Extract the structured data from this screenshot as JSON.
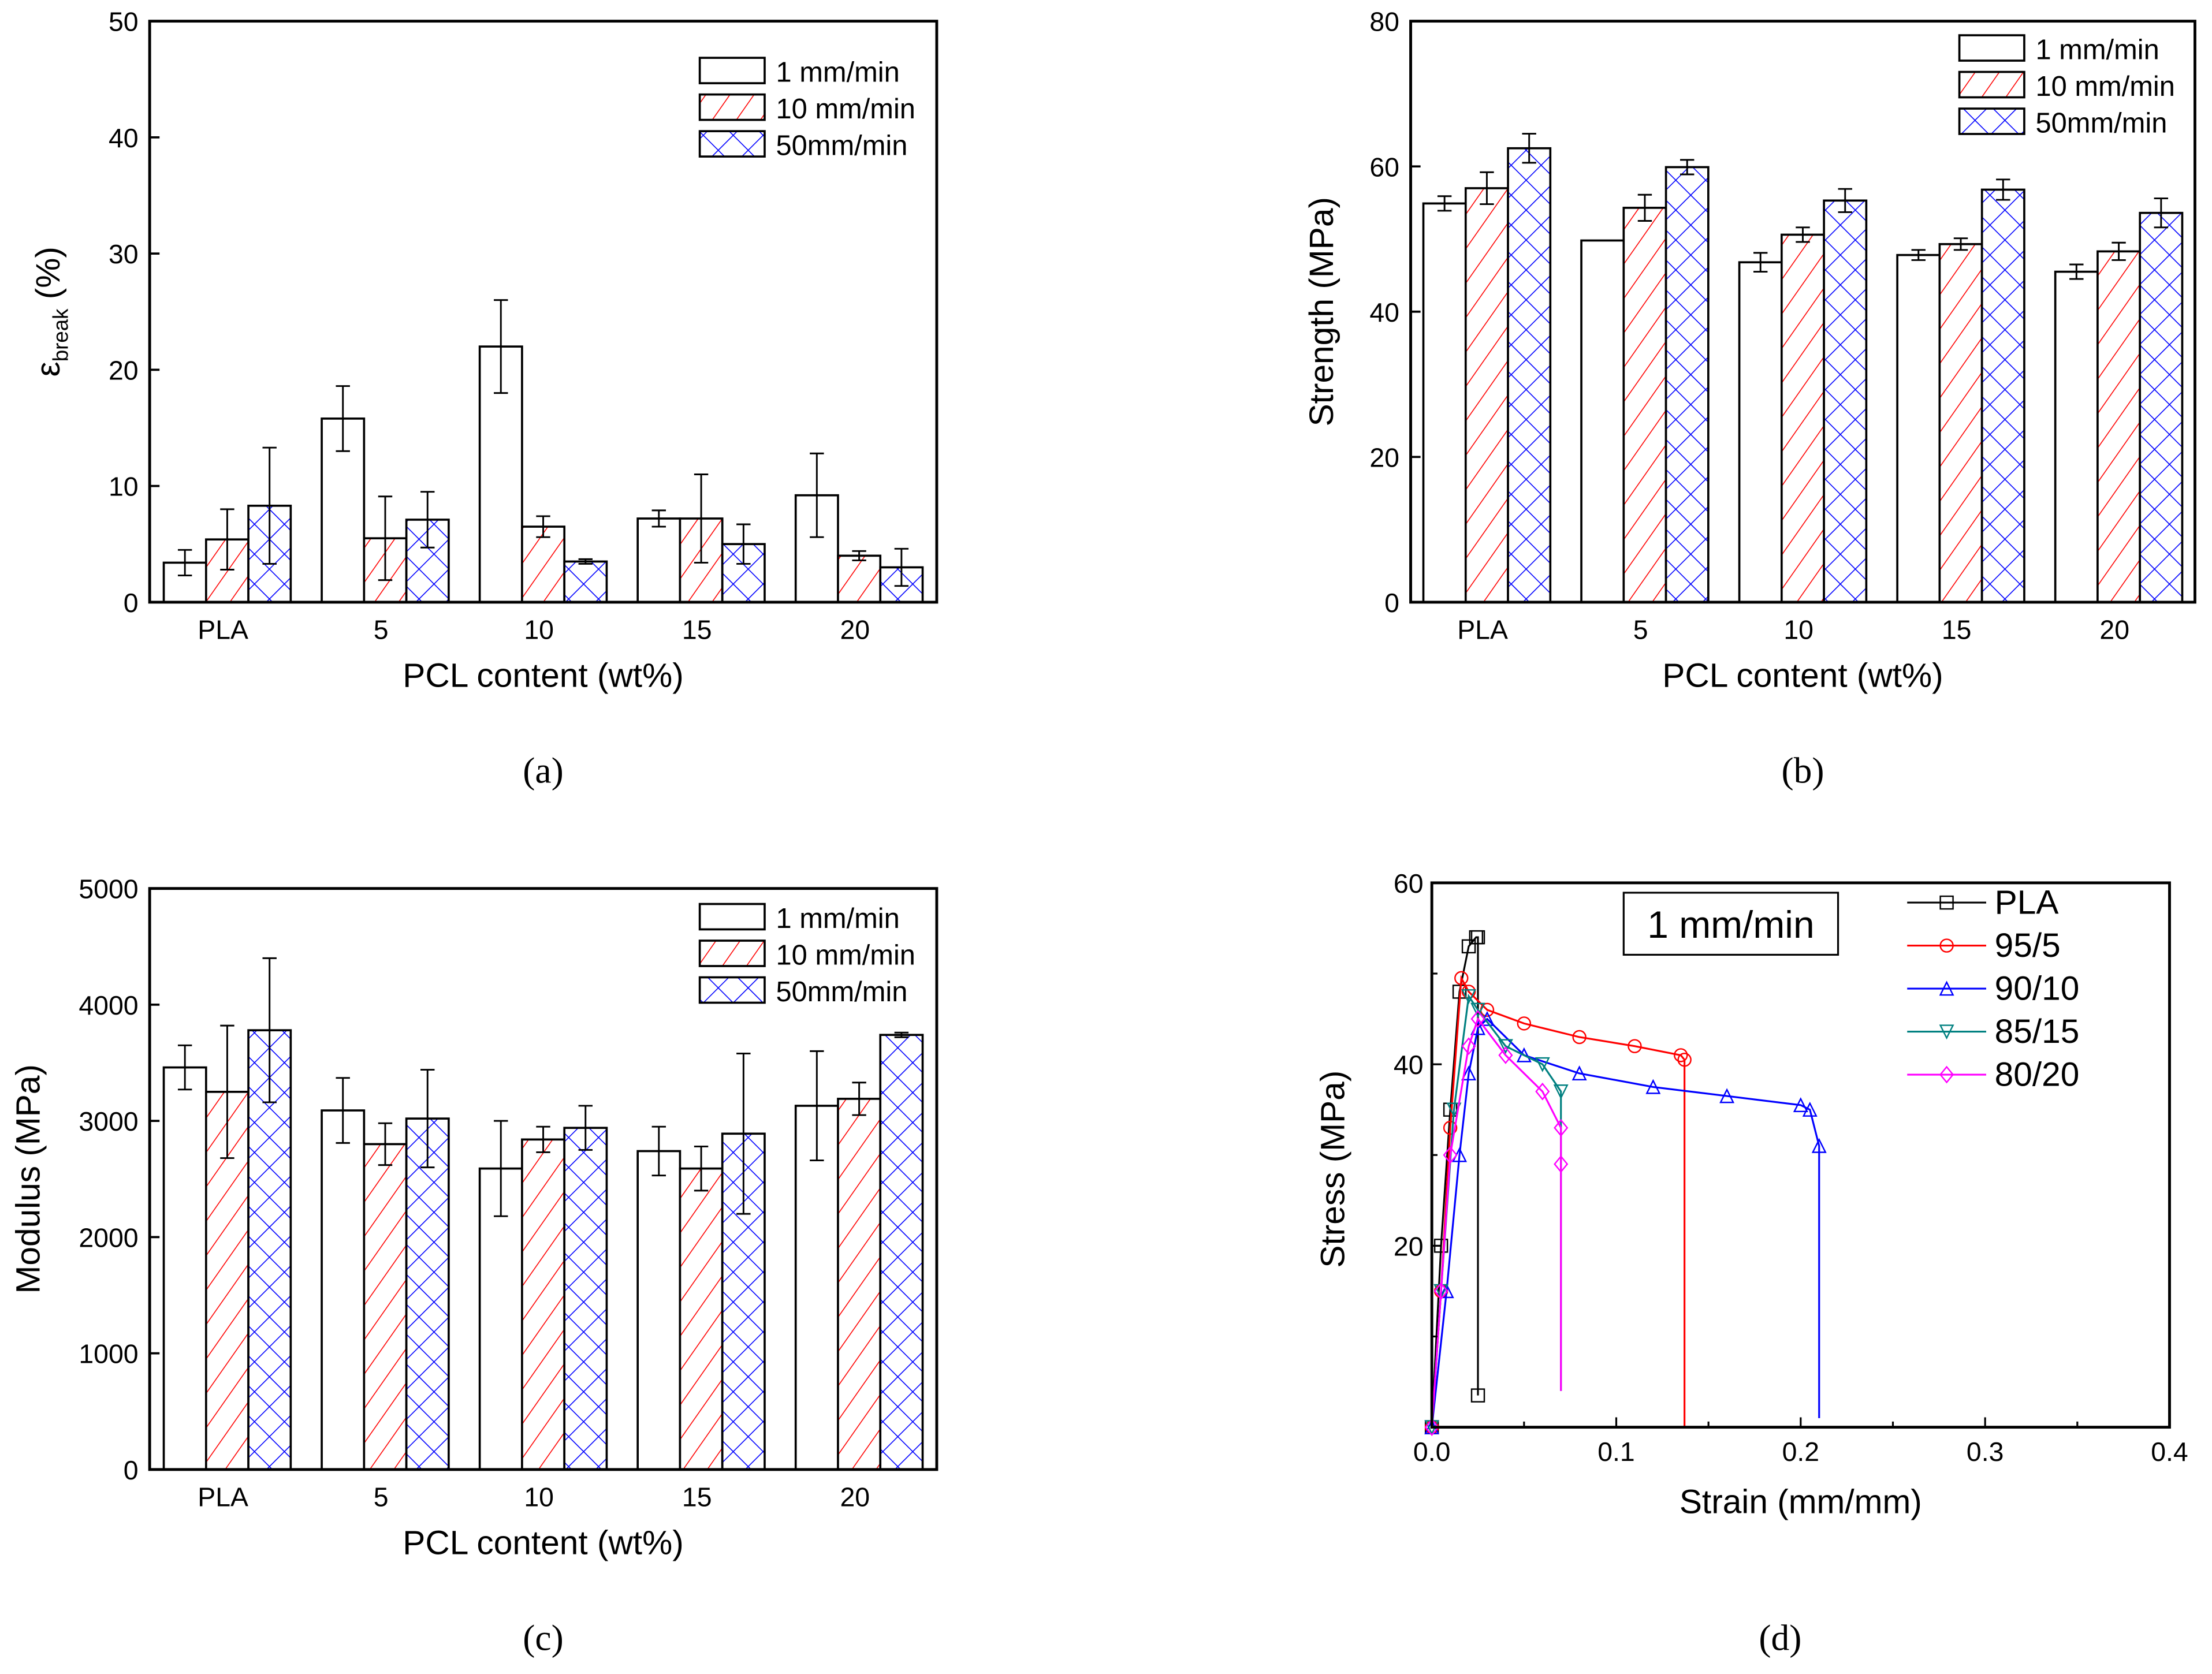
{
  "chart_data": [
    {
      "id": "a",
      "type": "bar",
      "caption": "(a)",
      "categories": [
        "PLA",
        "5",
        "10",
        "15",
        "20"
      ],
      "xlabel": "PCL content (wt%)",
      "ylabel_main": "ε",
      "ylabel_sub": "break",
      "ylabel_unit": " (%)",
      "ylim": [
        0,
        50
      ],
      "yticks": [
        0,
        10,
        20,
        30,
        40,
        50
      ],
      "legend_position": "top-right",
      "series": [
        {
          "name": "1 mm/min",
          "fill": "plain",
          "values": [
            3.4,
            15.8,
            22.0,
            7.2,
            9.2
          ],
          "errors": [
            1.1,
            2.8,
            4.0,
            0.7,
            3.6
          ]
        },
        {
          "name": "10 mm/min",
          "fill": "red-hatch",
          "values": [
            5.4,
            5.5,
            6.5,
            7.2,
            4.0
          ],
          "errors": [
            2.6,
            3.6,
            0.9,
            3.8,
            0.4
          ]
        },
        {
          "name": "50mm/min",
          "fill": "blue-crosshatch",
          "values": [
            8.3,
            7.1,
            3.5,
            5.0,
            3.0
          ],
          "errors": [
            5.0,
            2.4,
            0.2,
            1.7,
            1.6
          ]
        }
      ]
    },
    {
      "id": "b",
      "type": "bar",
      "caption": "(b)",
      "categories": [
        "PLA",
        "5",
        "10",
        "15",
        "20"
      ],
      "xlabel": "PCL content (wt%)",
      "ylabel": "Strength (MPa)",
      "ylim": [
        0,
        80
      ],
      "yticks": [
        0,
        20,
        40,
        60,
        80
      ],
      "legend_position": "top-right",
      "series": [
        {
          "name": "1 mm/min",
          "fill": "plain",
          "values": [
            54.9,
            49.8,
            46.8,
            47.8,
            45.5
          ],
          "errors": [
            1.0,
            0.0,
            1.3,
            0.7,
            1.0
          ]
        },
        {
          "name": "10 mm/min",
          "fill": "red-hatch",
          "values": [
            57.0,
            54.3,
            50.6,
            49.3,
            48.3
          ],
          "errors": [
            2.2,
            1.8,
            1.0,
            0.8,
            1.2
          ]
        },
        {
          "name": "50mm/min",
          "fill": "blue-crosshatch",
          "values": [
            62.5,
            59.9,
            55.3,
            56.8,
            53.6
          ],
          "errors": [
            2.0,
            1.0,
            1.6,
            1.4,
            2.0
          ]
        }
      ]
    },
    {
      "id": "c",
      "type": "bar",
      "caption": "(c)",
      "categories": [
        "PLA",
        "5",
        "10",
        "15",
        "20"
      ],
      "xlabel": "PCL content (wt%)",
      "ylabel": "Modulus (MPa)",
      "ylim": [
        0,
        5000
      ],
      "yticks": [
        0,
        1000,
        2000,
        3000,
        4000,
        5000
      ],
      "legend_position": "top-right",
      "series": [
        {
          "name": "1 mm/min",
          "fill": "plain",
          "values": [
            3460,
            3090,
            2590,
            2740,
            3130
          ],
          "errors": [
            190,
            280,
            410,
            210,
            470
          ]
        },
        {
          "name": "10 mm/min",
          "fill": "red-hatch",
          "values": [
            3250,
            2800,
            2840,
            2590,
            3190
          ],
          "errors": [
            570,
            180,
            110,
            190,
            140
          ]
        },
        {
          "name": "50mm/min",
          "fill": "blue-crosshatch",
          "values": [
            3780,
            3020,
            2940,
            2890,
            3740
          ],
          "errors": [
            620,
            420,
            190,
            690,
            20
          ]
        }
      ]
    },
    {
      "id": "d",
      "type": "line",
      "caption": "(d)",
      "annotation": "1 mm/min",
      "xlabel": "Strain (mm/mm)",
      "ylabel": "Stress (MPa)",
      "xlim": [
        0,
        0.4
      ],
      "ylim": [
        0,
        60
      ],
      "xticks": [
        "0.0",
        "0.1",
        "0.2",
        "0.3",
        "0.4"
      ],
      "yticks": [
        "20",
        "40",
        "60"
      ],
      "legend_position": "top-right",
      "series": [
        {
          "name": "PLA",
          "color": "#000000",
          "marker": "square",
          "x": [
            0,
            0.005,
            0.01,
            0.015,
            0.02,
            0.024,
            0.025,
            0.025
          ],
          "y": [
            0,
            20,
            35,
            48,
            53,
            54,
            54,
            3.5
          ]
        },
        {
          "name": "95/5",
          "color": "#ff0000",
          "marker": "circle",
          "x": [
            0,
            0.005,
            0.01,
            0.016,
            0.02,
            0.03,
            0.05,
            0.08,
            0.11,
            0.135,
            0.137,
            0.137
          ],
          "y": [
            0,
            15,
            33,
            49.5,
            48,
            46,
            44.5,
            43,
            42,
            41,
            40.5,
            0
          ]
        },
        {
          "name": "90/10",
          "color": "#0000ff",
          "marker": "triangle-up",
          "x": [
            0,
            0.008,
            0.015,
            0.02,
            0.025,
            0.03,
            0.05,
            0.08,
            0.12,
            0.16,
            0.2,
            0.205,
            0.21,
            0.21
          ],
          "y": [
            0,
            15,
            30,
            39,
            44,
            45,
            41,
            39,
            37.5,
            36.5,
            35.5,
            35,
            31,
            1
          ]
        },
        {
          "name": "85/15",
          "color": "#008080",
          "marker": "triangle-down",
          "x": [
            0,
            0.005,
            0.012,
            0.02,
            0.025,
            0.04,
            0.06,
            0.07,
            0.07
          ],
          "y": [
            0,
            15,
            35,
            47.5,
            46,
            42,
            40,
            37,
            4
          ]
        },
        {
          "name": "80/20",
          "color": "#ff00ff",
          "marker": "diamond",
          "x": [
            0,
            0.005,
            0.01,
            0.02,
            0.025,
            0.04,
            0.06,
            0.07,
            0.07,
            0.07
          ],
          "y": [
            0,
            15,
            30,
            42,
            45,
            41,
            37,
            33,
            29,
            4
          ]
        }
      ]
    }
  ]
}
